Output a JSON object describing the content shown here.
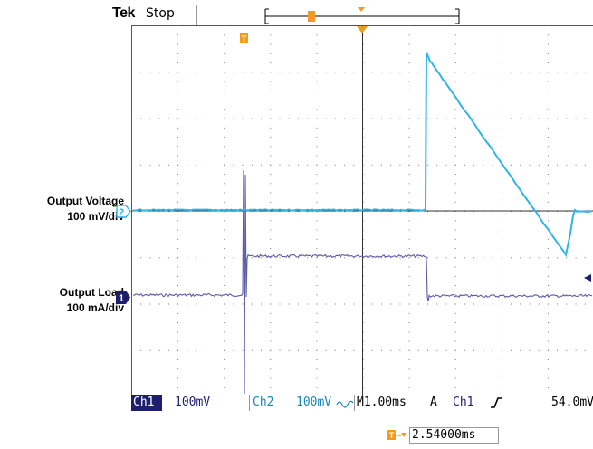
{
  "header": {
    "brand": "Tek",
    "run_state": "Stop"
  },
  "left_labels": {
    "ch2_title": "Output Voltage",
    "ch2_scale": "100 mV/div",
    "ch1_title": "Output Load",
    "ch1_scale": "100 mA/div"
  },
  "markers": {
    "ch2": "2",
    "ch1": "1",
    "trigger_point": "T"
  },
  "status_bar": {
    "ch1_label": "Ch1",
    "ch1_scale": "100mV",
    "ch2_label": "Ch2",
    "ch2_scale": "100mV",
    "bw_icon": "bandwidth-limit-icon",
    "timebase": "M1.00ms",
    "trigger_mode": "A",
    "trigger_source": "Ch1",
    "trigger_slope_icon": "rising-edge-icon",
    "trigger_level": "54.0mV"
  },
  "horizontal_delay": "2.54000ms",
  "colors": {
    "ch1": "#5a5aa8",
    "ch2": "#2fb4e6",
    "accent": "#f59a1f",
    "status_bg": "#1e1e6e"
  }
}
